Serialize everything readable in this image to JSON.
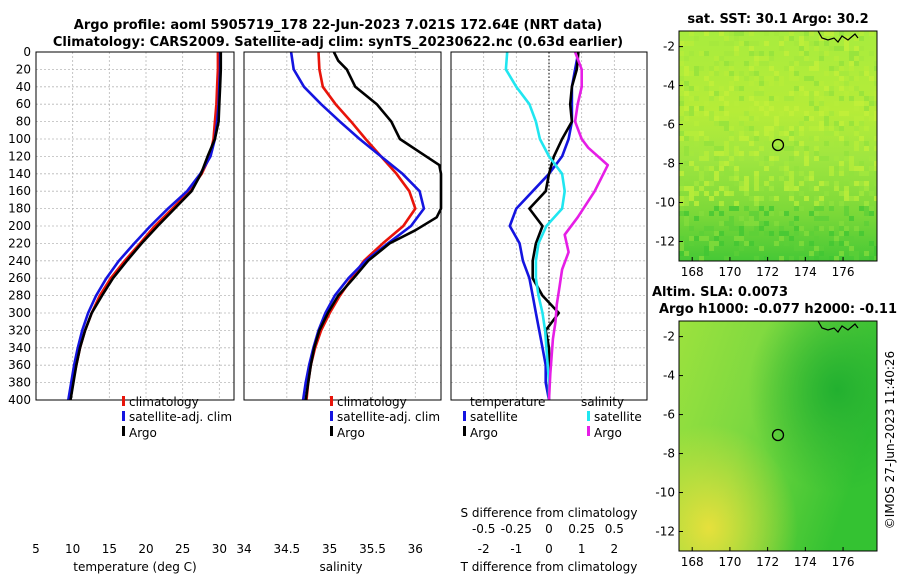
{
  "header": {
    "line1": "Argo profile: aoml 5905719_178 22-Jun-2023 7.021S 172.64E (NRT data)",
    "line2": "Climatology: CARS2009. Satellite-adj clim: synTS_20230622.nc (0.63d earlier)"
  },
  "colors": {
    "red": "#e8140a",
    "blue": "#1414e0",
    "black": "#000000",
    "cyan": "#20e6f0",
    "magenta": "#e61ee6"
  },
  "pressure_ticks": [
    "0",
    "20",
    "40",
    "60",
    "80",
    "100",
    "120",
    "140",
    "160",
    "180",
    "200",
    "220",
    "240",
    "260",
    "280",
    "300",
    "320",
    "340",
    "360",
    "380",
    "400"
  ],
  "chart_data": [
    {
      "type": "line",
      "id": "temperature",
      "xlabel": "temperature (deg C)",
      "xlim": [
        5,
        32
      ],
      "ylim": [
        400,
        0
      ],
      "xticks": [
        "5",
        "10",
        "15",
        "20",
        "25",
        "30"
      ],
      "legend": [
        "climatology",
        "satellite-adj. clim",
        "Argo"
      ],
      "series": [
        {
          "name": "climatology",
          "color": "red",
          "points": [
            [
              29.8,
              0
            ],
            [
              29.8,
              20
            ],
            [
              29.7,
              40
            ],
            [
              29.6,
              60
            ],
            [
              29.4,
              80
            ],
            [
              29.2,
              100
            ],
            [
              28.7,
              120
            ],
            [
              27.6,
              140
            ],
            [
              25.9,
              160
            ],
            [
              23.6,
              180
            ],
            [
              21.2,
              200
            ],
            [
              19.2,
              220
            ],
            [
              17.1,
              240
            ],
            [
              15.2,
              260
            ],
            [
              13.7,
              280
            ],
            [
              12.6,
              300
            ],
            [
              11.7,
              320
            ],
            [
              11.0,
              340
            ],
            [
              10.5,
              360
            ],
            [
              10.0,
              380
            ],
            [
              9.6,
              400
            ]
          ]
        },
        {
          "name": "satellite-adj. clim",
          "color": "blue",
          "points": [
            [
              30.1,
              0
            ],
            [
              30.1,
              20
            ],
            [
              30.0,
              40
            ],
            [
              29.9,
              60
            ],
            [
              29.7,
              80
            ],
            [
              29.4,
              100
            ],
            [
              28.8,
              120
            ],
            [
              27.4,
              140
            ],
            [
              25.6,
              160
            ],
            [
              23.0,
              180
            ],
            [
              20.6,
              200
            ],
            [
              18.4,
              220
            ],
            [
              16.3,
              240
            ],
            [
              14.6,
              260
            ],
            [
              13.2,
              280
            ],
            [
              12.1,
              300
            ],
            [
              11.3,
              320
            ],
            [
              10.7,
              340
            ],
            [
              10.2,
              360
            ],
            [
              9.8,
              380
            ],
            [
              9.4,
              400
            ]
          ]
        },
        {
          "name": "Argo",
          "color": "black",
          "points": [
            [
              30.2,
              0
            ],
            [
              30.2,
              20
            ],
            [
              30.1,
              40
            ],
            [
              30.0,
              60
            ],
            [
              29.9,
              80
            ],
            [
              29.4,
              100
            ],
            [
              28.4,
              120
            ],
            [
              27.5,
              140
            ],
            [
              26.2,
              160
            ],
            [
              23.9,
              180
            ],
            [
              21.6,
              200
            ],
            [
              19.4,
              220
            ],
            [
              17.4,
              240
            ],
            [
              15.5,
              260
            ],
            [
              14.0,
              280
            ],
            [
              12.6,
              300
            ],
            [
              11.7,
              320
            ],
            [
              11.0,
              340
            ],
            [
              10.5,
              360
            ],
            [
              10.1,
              380
            ],
            [
              9.7,
              400
            ]
          ]
        }
      ]
    },
    {
      "type": "line",
      "id": "salinity",
      "xlabel": "salinity",
      "xlim": [
        34,
        36.3
      ],
      "ylim": [
        400,
        0
      ],
      "xticks": [
        "34",
        "34.5",
        "35",
        "35.5",
        "36"
      ],
      "legend": [
        "climatology",
        "satellite-adj. clim",
        "Argo"
      ],
      "series": [
        {
          "name": "climatology",
          "color": "red",
          "points": [
            [
              34.87,
              0
            ],
            [
              34.88,
              20
            ],
            [
              34.92,
              40
            ],
            [
              35.07,
              60
            ],
            [
              35.25,
              80
            ],
            [
              35.42,
              100
            ],
            [
              35.6,
              120
            ],
            [
              35.78,
              140
            ],
            [
              35.93,
              160
            ],
            [
              36.0,
              180
            ],
            [
              35.86,
              200
            ],
            [
              35.62,
              220
            ],
            [
              35.4,
              240
            ],
            [
              35.26,
              260
            ],
            [
              35.12,
              280
            ],
            [
              35.0,
              300
            ],
            [
              34.9,
              320
            ],
            [
              34.83,
              340
            ],
            [
              34.78,
              360
            ],
            [
              34.75,
              380
            ],
            [
              34.73,
              400
            ]
          ]
        },
        {
          "name": "satellite-adj. clim",
          "color": "blue",
          "points": [
            [
              34.55,
              0
            ],
            [
              34.58,
              20
            ],
            [
              34.7,
              40
            ],
            [
              34.9,
              60
            ],
            [
              35.12,
              80
            ],
            [
              35.35,
              100
            ],
            [
              35.6,
              120
            ],
            [
              35.85,
              140
            ],
            [
              36.05,
              160
            ],
            [
              36.1,
              180
            ],
            [
              35.95,
              200
            ],
            [
              35.68,
              220
            ],
            [
              35.42,
              240
            ],
            [
              35.22,
              260
            ],
            [
              35.06,
              280
            ],
            [
              34.95,
              300
            ],
            [
              34.87,
              320
            ],
            [
              34.81,
              340
            ],
            [
              34.76,
              360
            ],
            [
              34.72,
              380
            ],
            [
              34.69,
              400
            ]
          ]
        },
        {
          "name": "Argo",
          "color": "black",
          "points": [
            [
              35.05,
              0
            ],
            [
              35.1,
              10
            ],
            [
              35.2,
              20
            ],
            [
              35.3,
              40
            ],
            [
              35.55,
              60
            ],
            [
              35.72,
              80
            ],
            [
              35.82,
              100
            ],
            [
              36.05,
              115
            ],
            [
              36.28,
              130
            ],
            [
              36.3,
              140
            ],
            [
              36.3,
              180
            ],
            [
              36.25,
              190
            ],
            [
              36.0,
              205
            ],
            [
              35.7,
              220
            ],
            [
              35.45,
              240
            ],
            [
              35.28,
              260
            ],
            [
              35.1,
              280
            ],
            [
              34.98,
              300
            ],
            [
              34.88,
              320
            ],
            [
              34.82,
              340
            ],
            [
              34.78,
              360
            ],
            [
              34.75,
              380
            ],
            [
              34.72,
              400
            ]
          ]
        }
      ]
    },
    {
      "type": "line",
      "id": "differences",
      "xlabel": "T difference from climatology",
      "xlabel2": "S difference from climatology",
      "xlim": [
        -3,
        3
      ],
      "ylim": [
        400,
        0
      ],
      "xticks": [
        "-2",
        "-1",
        "0",
        "1",
        "2"
      ],
      "sticks": [
        "-0.5",
        "-0.25",
        "0",
        "0.25",
        "0.5"
      ],
      "legend_t_title": "temperature",
      "legend_s_title": "salinity",
      "legend": [
        "satellite",
        "Argo",
        "satellite",
        "Argo"
      ],
      "series": [
        {
          "name": "T satellite",
          "color": "blue",
          "points": [
            [
              0.9,
              0
            ],
            [
              0.8,
              20
            ],
            [
              0.7,
              40
            ],
            [
              0.7,
              60
            ],
            [
              0.7,
              80
            ],
            [
              0.6,
              100
            ],
            [
              0.4,
              120
            ],
            [
              0.0,
              140
            ],
            [
              -0.5,
              160
            ],
            [
              -1.0,
              180
            ],
            [
              -1.2,
              200
            ],
            [
              -0.9,
              220
            ],
            [
              -0.8,
              240
            ],
            [
              -0.6,
              260
            ],
            [
              -0.5,
              280
            ],
            [
              -0.4,
              300
            ],
            [
              -0.3,
              320
            ],
            [
              -0.2,
              340
            ],
            [
              -0.1,
              360
            ],
            [
              -0.1,
              380
            ],
            [
              0.0,
              400
            ]
          ]
        },
        {
          "name": "T Argo",
          "color": "black",
          "points": [
            [
              0.9,
              0
            ],
            [
              0.85,
              20
            ],
            [
              0.7,
              40
            ],
            [
              0.65,
              60
            ],
            [
              0.7,
              80
            ],
            [
              0.4,
              100
            ],
            [
              0.15,
              120
            ],
            [
              0.0,
              140
            ],
            [
              -0.1,
              160
            ],
            [
              -0.6,
              180
            ],
            [
              -0.2,
              200
            ],
            [
              -0.4,
              220
            ],
            [
              -0.5,
              240
            ],
            [
              -0.5,
              260
            ],
            [
              -0.2,
              280
            ],
            [
              0.3,
              300
            ],
            [
              -0.1,
              320
            ],
            [
              0.0,
              340
            ],
            [
              0.0,
              360
            ],
            [
              0.0,
              380
            ],
            [
              0.0,
              400
            ]
          ]
        },
        {
          "name": "S satellite",
          "color": "cyan",
          "points": [
            [
              -0.32,
              0
            ],
            [
              -0.33,
              20
            ],
            [
              -0.25,
              40
            ],
            [
              -0.15,
              60
            ],
            [
              -0.1,
              80
            ],
            [
              -0.07,
              100
            ],
            [
              0.0,
              120
            ],
            [
              0.1,
              140
            ],
            [
              0.12,
              160
            ],
            [
              0.1,
              180
            ],
            [
              -0.02,
              200
            ],
            [
              -0.08,
              220
            ],
            [
              -0.1,
              240
            ],
            [
              -0.1,
              260
            ],
            [
              -0.08,
              280
            ],
            [
              -0.05,
              300
            ],
            [
              -0.03,
              320
            ],
            [
              -0.02,
              340
            ],
            [
              -0.01,
              360
            ],
            [
              0.0,
              380
            ],
            [
              0.0,
              400
            ]
          ]
        },
        {
          "name": "S Argo",
          "color": "magenta",
          "points": [
            [
              0.2,
              0
            ],
            [
              0.25,
              20
            ],
            [
              0.25,
              40
            ],
            [
              0.22,
              60
            ],
            [
              0.2,
              80
            ],
            [
              0.25,
              100
            ],
            [
              0.3,
              110
            ],
            [
              0.45,
              130
            ],
            [
              0.35,
              160
            ],
            [
              0.22,
              190
            ],
            [
              0.12,
              210
            ],
            [
              0.15,
              230
            ],
            [
              0.1,
              250
            ],
            [
              0.08,
              270
            ],
            [
              0.06,
              290
            ],
            [
              0.05,
              310
            ],
            [
              0.03,
              330
            ],
            [
              0.02,
              350
            ],
            [
              0.01,
              370
            ],
            [
              0.0,
              400
            ]
          ]
        }
      ]
    },
    {
      "type": "heatmap",
      "id": "sst-map",
      "title": "sat. SST: 30.1 Argo: 30.2",
      "xticks": [
        "168",
        "170",
        "172",
        "174",
        "176"
      ],
      "yticks": [
        "-2",
        "-4",
        "-6",
        "-8",
        "-10",
        "-12"
      ],
      "xlim": [
        167.3,
        177.8
      ],
      "ylim": [
        -13,
        -1.2
      ],
      "marker": [
        172.64,
        -7.021
      ]
    },
    {
      "type": "heatmap",
      "id": "sla-map",
      "title1": "Altim. SLA: 0.0073",
      "title2": "Argo h1000: -0.077 h2000: -0.11",
      "xticks": [
        "168",
        "170",
        "172",
        "174",
        "176"
      ],
      "yticks": [
        "-2",
        "-4",
        "-6",
        "-8",
        "-10",
        "-12"
      ],
      "xlim": [
        167.3,
        177.8
      ],
      "ylim": [
        -13,
        -1.2
      ],
      "marker": [
        172.64,
        -7.021
      ]
    }
  ],
  "footer": {
    "stamp": "©IMOS 27-Jun-2023 11:40:26"
  }
}
